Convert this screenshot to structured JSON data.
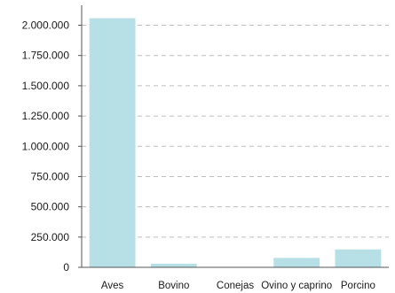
{
  "chart_data": {
    "type": "bar",
    "title": "",
    "xlabel": "",
    "ylabel": "",
    "categories": [
      "Aves",
      "Bovino",
      "Conejas",
      "Ovino y caprino",
      "Porcino"
    ],
    "values": [
      2058000,
      30000,
      1000,
      78000,
      148000
    ],
    "ylim": [
      0,
      2150000
    ],
    "yticks": [
      0,
      250000,
      500000,
      750000,
      1000000,
      1250000,
      1500000,
      1750000,
      2000000
    ],
    "ytick_labels": [
      "0",
      "250.000",
      "500.000",
      "750.000",
      "1.000.000",
      "1.250.000",
      "1.500.000",
      "1.750.000",
      "2.000.000"
    ],
    "grid": true,
    "legend": "none",
    "colors": {
      "bar": "#b7dfe6",
      "grid": "#bdbdbd",
      "axis": "#555555",
      "text": "#1a1a1a"
    }
  }
}
